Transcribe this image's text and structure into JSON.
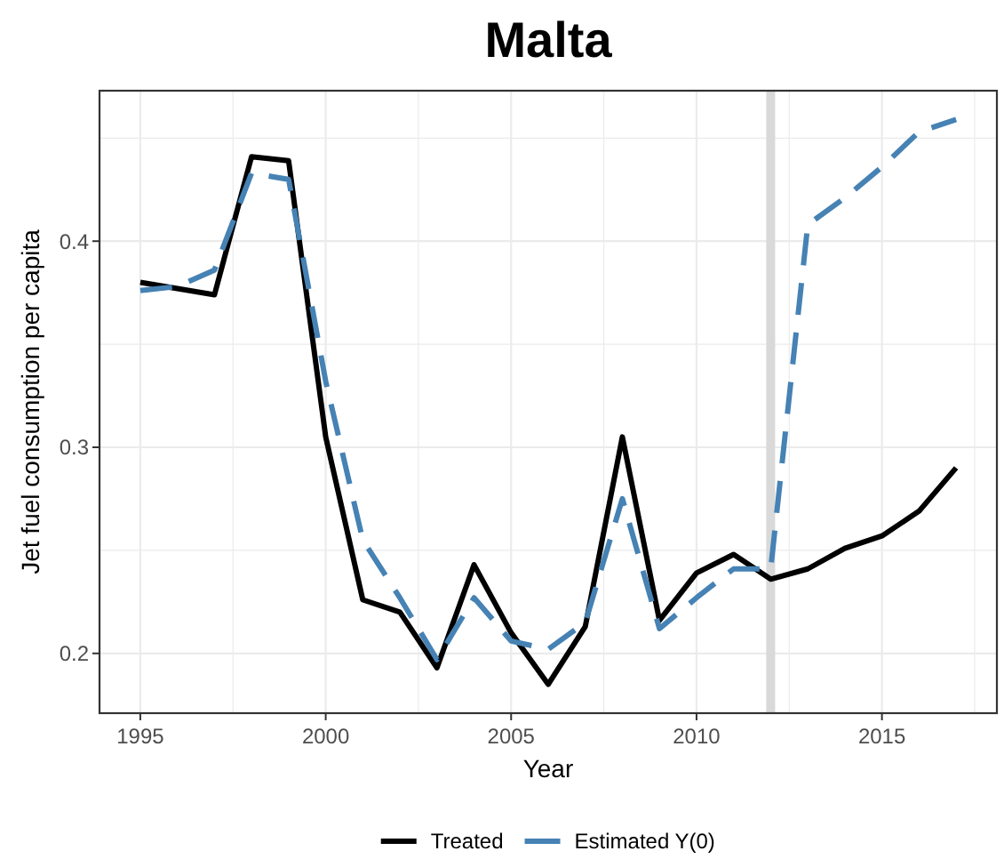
{
  "chart_data": {
    "type": "line",
    "title": "Malta",
    "xlabel": "Year",
    "ylabel": "Jet fuel consumption per capita",
    "x": [
      1995,
      1996,
      1997,
      1998,
      1999,
      2000,
      2001,
      2002,
      2003,
      2004,
      2005,
      2006,
      2007,
      2008,
      2009,
      2010,
      2011,
      2012,
      2013,
      2014,
      2015,
      2016,
      2017
    ],
    "series": [
      {
        "name": "Treated",
        "color": "#000000",
        "line_style": "solid",
        "values": [
          0.38,
          0.377,
          0.374,
          0.441,
          0.439,
          0.305,
          0.226,
          0.22,
          0.193,
          0.243,
          0.21,
          0.185,
          0.213,
          0.305,
          0.216,
          0.239,
          0.248,
          0.236,
          0.241,
          0.251,
          0.257,
          0.269,
          0.29
        ]
      },
      {
        "name": "Estimated Y(0)",
        "color": "#4682b4",
        "line_style": "dashed",
        "values": [
          0.376,
          0.378,
          0.386,
          0.433,
          0.43,
          0.332,
          0.255,
          0.227,
          0.197,
          0.227,
          0.206,
          0.202,
          0.215,
          0.275,
          0.212,
          0.227,
          0.241,
          0.241,
          0.408,
          0.421,
          0.436,
          0.453,
          0.459
        ]
      }
    ],
    "xlim": [
      1993.9,
      2018.1
    ],
    "ylim": [
      0.171,
      0.473
    ],
    "xticks": [
      1995,
      {
        "value": 1997.5,
        "label": null
      },
      2000,
      {
        "value": 2002.5,
        "label": null
      },
      2005,
      {
        "value": 2007.5,
        "label": null
      },
      2010,
      {
        "value": 2012.5,
        "label": null
      },
      2015,
      {
        "value": 2017.5,
        "label": null
      }
    ],
    "yticks": [
      0.2,
      {
        "value": 0.25,
        "label": null
      },
      0.3,
      {
        "value": 0.35,
        "label": null
      },
      0.4,
      {
        "value": 0.45,
        "label": null
      }
    ],
    "ref_lines": [
      {
        "axis": "x",
        "value": 2012,
        "color": "#d9d9d9"
      }
    ],
    "grid": true,
    "legend": "bottom"
  }
}
